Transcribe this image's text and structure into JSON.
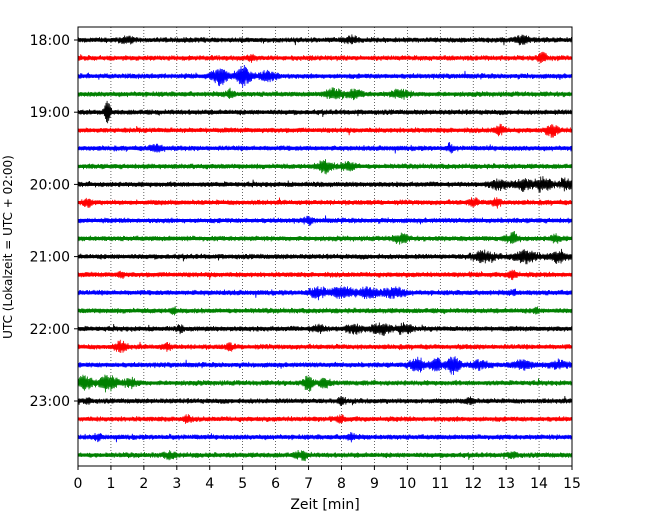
{
  "chart_data": {
    "type": "line",
    "chart_kind": "helicorder",
    "xlabel": "Zeit  [min]",
    "ylabel": "UTC (Lokalzeit = UTC + 02:00)",
    "xlim": [
      0,
      15
    ],
    "x_ticks": [
      "0",
      "1",
      "2",
      "3",
      "4",
      "5",
      "6",
      "7",
      "8",
      "9",
      "10",
      "11",
      "12",
      "13",
      "14",
      "15"
    ],
    "y_tick_labels": [
      "18:00",
      "19:00",
      "20:00",
      "21:00",
      "22:00",
      "23:00"
    ],
    "grid": {
      "vertical": true,
      "style": "dotted"
    },
    "color_cycle": [
      "#000000",
      "#ff0000",
      "#0000ff",
      "#008000"
    ],
    "traces": [
      {
        "start": "18:00",
        "events": [
          {
            "minute": 1.5,
            "amp": 0.3,
            "dur": 0.4
          },
          {
            "minute": 8.3,
            "amp": 0.3,
            "dur": 0.5
          },
          {
            "minute": 13.5,
            "amp": 0.3,
            "dur": 0.5
          }
        ]
      },
      {
        "start": "18:15",
        "events": [
          {
            "minute": 5.3,
            "amp": 0.3,
            "dur": 0.3
          },
          {
            "minute": 14.1,
            "amp": 0.5,
            "dur": 0.3
          }
        ]
      },
      {
        "start": "18:30",
        "events": [
          {
            "minute": 4.3,
            "amp": 0.9,
            "dur": 0.5
          },
          {
            "minute": 5.0,
            "amp": 1.0,
            "dur": 0.5
          },
          {
            "minute": 5.8,
            "amp": 0.5,
            "dur": 0.6
          }
        ]
      },
      {
        "start": "18:45",
        "events": [
          {
            "minute": 4.6,
            "amp": 0.4,
            "dur": 0.3
          },
          {
            "minute": 7.8,
            "amp": 0.5,
            "dur": 0.6
          },
          {
            "minute": 8.4,
            "amp": 0.4,
            "dur": 0.5
          },
          {
            "minute": 9.8,
            "amp": 0.4,
            "dur": 0.6
          }
        ]
      },
      {
        "start": "19:00",
        "events": [
          {
            "minute": 0.9,
            "amp": 1.1,
            "dur": 0.2
          }
        ]
      },
      {
        "start": "19:15",
        "events": [
          {
            "minute": 12.8,
            "amp": 0.5,
            "dur": 0.3
          },
          {
            "minute": 14.4,
            "amp": 0.6,
            "dur": 0.4
          }
        ]
      },
      {
        "start": "19:30",
        "events": [
          {
            "minute": 2.4,
            "amp": 0.3,
            "dur": 0.5
          },
          {
            "minute": 11.3,
            "amp": 0.4,
            "dur": 0.2
          }
        ]
      },
      {
        "start": "19:45",
        "events": [
          {
            "minute": 7.5,
            "amp": 0.6,
            "dur": 0.5
          },
          {
            "minute": 8.2,
            "amp": 0.4,
            "dur": 0.5
          }
        ]
      },
      {
        "start": "20:00",
        "events": [
          {
            "minute": 12.8,
            "amp": 0.5,
            "dur": 0.6
          },
          {
            "minute": 13.5,
            "amp": 0.6,
            "dur": 0.5
          },
          {
            "minute": 14.1,
            "amp": 0.7,
            "dur": 0.6
          },
          {
            "minute": 14.8,
            "amp": 0.5,
            "dur": 0.4
          }
        ]
      },
      {
        "start": "20:15",
        "events": [
          {
            "minute": 0.3,
            "amp": 0.4,
            "dur": 0.3
          },
          {
            "minute": 12.0,
            "amp": 0.4,
            "dur": 0.3
          },
          {
            "minute": 12.7,
            "amp": 0.4,
            "dur": 0.3
          }
        ]
      },
      {
        "start": "20:30",
        "events": [
          {
            "minute": 7.0,
            "amp": 0.3,
            "dur": 0.3
          }
        ]
      },
      {
        "start": "20:45",
        "events": [
          {
            "minute": 9.8,
            "amp": 0.4,
            "dur": 0.5
          },
          {
            "minute": 13.2,
            "amp": 0.5,
            "dur": 0.4
          },
          {
            "minute": 14.5,
            "amp": 0.4,
            "dur": 0.3
          }
        ]
      },
      {
        "start": "21:00",
        "events": [
          {
            "minute": 12.3,
            "amp": 0.5,
            "dur": 0.8
          },
          {
            "minute": 13.6,
            "amp": 0.6,
            "dur": 0.8
          },
          {
            "minute": 14.6,
            "amp": 0.6,
            "dur": 0.6
          }
        ]
      },
      {
        "start": "21:15",
        "events": [
          {
            "minute": 1.3,
            "amp": 0.3,
            "dur": 0.2
          },
          {
            "minute": 13.2,
            "amp": 0.4,
            "dur": 0.3
          }
        ]
      },
      {
        "start": "21:30",
        "events": [
          {
            "minute": 7.3,
            "amp": 0.5,
            "dur": 0.6
          },
          {
            "minute": 8.0,
            "amp": 0.5,
            "dur": 0.7
          },
          {
            "minute": 8.8,
            "amp": 0.5,
            "dur": 0.7
          },
          {
            "minute": 9.6,
            "amp": 0.5,
            "dur": 0.7
          },
          {
            "minute": 13.2,
            "amp": 0.3,
            "dur": 0.2
          }
        ]
      },
      {
        "start": "21:45",
        "events": [
          {
            "minute": 2.9,
            "amp": 0.3,
            "dur": 0.2
          },
          {
            "minute": 13.9,
            "amp": 0.3,
            "dur": 0.2
          }
        ]
      },
      {
        "start": "22:00",
        "events": [
          {
            "minute": 3.1,
            "amp": 0.3,
            "dur": 0.2
          },
          {
            "minute": 7.3,
            "amp": 0.3,
            "dur": 0.5
          },
          {
            "minute": 8.4,
            "amp": 0.4,
            "dur": 0.6
          },
          {
            "minute": 9.2,
            "amp": 0.6,
            "dur": 0.6
          },
          {
            "minute": 9.9,
            "amp": 0.5,
            "dur": 0.5
          }
        ]
      },
      {
        "start": "22:15",
        "events": [
          {
            "minute": 1.3,
            "amp": 0.5,
            "dur": 0.4
          },
          {
            "minute": 2.7,
            "amp": 0.3,
            "dur": 0.3
          },
          {
            "minute": 4.6,
            "amp": 0.3,
            "dur": 0.3
          }
        ]
      },
      {
        "start": "22:30",
        "events": [
          {
            "minute": 10.3,
            "amp": 0.7,
            "dur": 0.5
          },
          {
            "minute": 10.9,
            "amp": 0.6,
            "dur": 0.4
          },
          {
            "minute": 11.4,
            "amp": 1.0,
            "dur": 0.4
          },
          {
            "minute": 12.2,
            "amp": 0.4,
            "dur": 0.6
          },
          {
            "minute": 13.5,
            "amp": 0.4,
            "dur": 0.7
          },
          {
            "minute": 14.6,
            "amp": 0.4,
            "dur": 0.6
          }
        ]
      },
      {
        "start": "22:45",
        "events": [
          {
            "minute": 0.2,
            "amp": 0.7,
            "dur": 0.5
          },
          {
            "minute": 0.9,
            "amp": 0.8,
            "dur": 0.6
          },
          {
            "minute": 1.6,
            "amp": 0.4,
            "dur": 0.5
          },
          {
            "minute": 7.0,
            "amp": 0.8,
            "dur": 0.3
          },
          {
            "minute": 7.5,
            "amp": 0.4,
            "dur": 0.4
          }
        ]
      },
      {
        "start": "23:00",
        "events": [
          {
            "minute": 0.3,
            "amp": 0.3,
            "dur": 0.2
          },
          {
            "minute": 8.0,
            "amp": 0.3,
            "dur": 0.3
          },
          {
            "minute": 11.9,
            "amp": 0.3,
            "dur": 0.3
          }
        ]
      },
      {
        "start": "23:15",
        "events": [
          {
            "minute": 3.3,
            "amp": 0.3,
            "dur": 0.3
          },
          {
            "minute": 8.0,
            "amp": 0.3,
            "dur": 0.3
          }
        ]
      },
      {
        "start": "23:30",
        "events": [
          {
            "minute": 0.6,
            "amp": 0.3,
            "dur": 0.2
          },
          {
            "minute": 8.3,
            "amp": 0.3,
            "dur": 0.3
          }
        ]
      },
      {
        "start": "23:45",
        "events": [
          {
            "minute": 2.8,
            "amp": 0.3,
            "dur": 0.4
          },
          {
            "minute": 6.8,
            "amp": 0.4,
            "dur": 0.4
          },
          {
            "minute": 13.2,
            "amp": 0.3,
            "dur": 0.3
          }
        ]
      }
    ]
  }
}
